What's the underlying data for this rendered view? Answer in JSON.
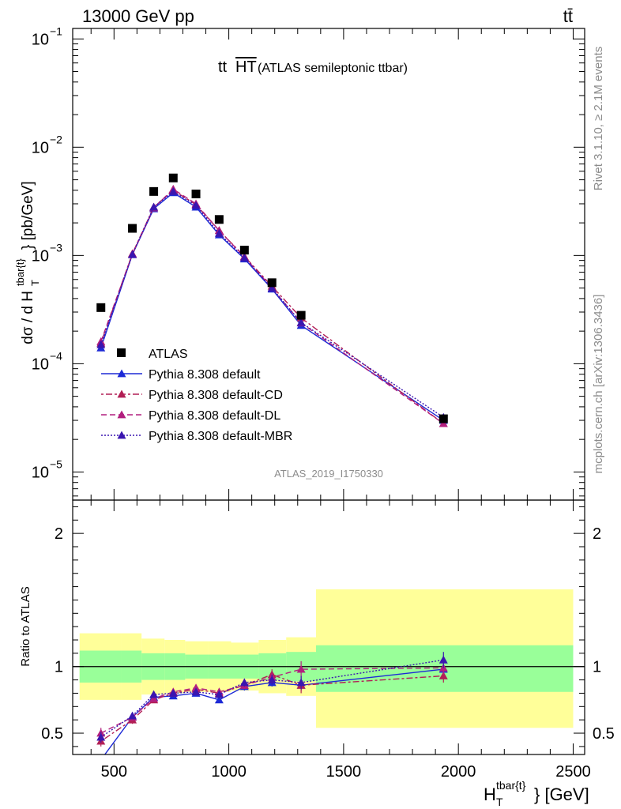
{
  "header": {
    "process": "13000 GeV pp",
    "channel": "tt̄"
  },
  "side_labels": {
    "rivet": "Rivet 3.1.10, ≥ 2.1M events",
    "mcplots": "mcplots.cern.ch [arXiv:1306.3436]"
  },
  "chart_data": [
    {
      "type": "scatter",
      "panel": "main",
      "title_main": "tt",
      "title_over": "HT",
      "title_sub": "(ATLAS semileptonic ttbar)",
      "watermark": "ATLAS_2019_I1750330",
      "ylabel": "dσ / d H_T^{tbar{t}} [pb/GeV]",
      "yscale": "log",
      "ylim": [
        5.5e-06,
        0.125
      ],
      "xlim": [
        320,
        2550
      ],
      "y_ticks": [
        {
          "value": 1e-05,
          "base": "10",
          "exp": "−5"
        },
        {
          "value": 0.0001,
          "base": "10",
          "exp": "−4"
        },
        {
          "value": 0.001,
          "base": "10",
          "exp": "−3"
        },
        {
          "value": 0.01,
          "base": "10",
          "exp": "−2"
        },
        {
          "value": 0.1,
          "base": "10",
          "exp": "−1"
        }
      ],
      "legend_position": "bottom-left",
      "series": [
        {
          "name": "ATLAS",
          "marker": "square",
          "color": "#000000",
          "x": [
            443,
            580,
            673,
            758,
            857,
            958,
            1068,
            1188,
            1315,
            1935
          ],
          "y": [
            0.00033,
            0.00178,
            0.0039,
            0.0052,
            0.0037,
            0.00215,
            0.00112,
            0.00056,
            0.00028,
            3.1e-05
          ]
        },
        {
          "name": "Pythia 8.308 default",
          "marker": "triangle",
          "color": "#1d2ad6",
          "dash": "",
          "x": [
            443,
            580,
            673,
            758,
            857,
            958,
            1068,
            1188,
            1315,
            1935
          ],
          "y": [
            0.00014,
            0.00102,
            0.0027,
            0.0038,
            0.0028,
            0.00155,
            0.00093,
            0.00049,
            0.000226,
            3e-05
          ]
        },
        {
          "name": "Pythia 8.308 default-CD",
          "marker": "triangle",
          "color": "#b21f55",
          "dash": "3,3,8,3",
          "x": [
            443,
            580,
            673,
            758,
            857,
            958,
            1068,
            1188,
            1315,
            1935
          ],
          "y": [
            0.000155,
            0.00104,
            0.0028,
            0.004,
            0.00295,
            0.0017,
            0.00098,
            0.00052,
            0.000265,
            2.8e-05
          ]
        },
        {
          "name": "Pythia 8.308 default-DL",
          "marker": "triangle",
          "color": "#b21f7e",
          "dash": "7,4",
          "x": [
            443,
            580,
            673,
            758,
            857,
            958,
            1068,
            1188,
            1315,
            1935
          ],
          "y": [
            0.00016,
            0.00103,
            0.00275,
            0.0041,
            0.003,
            0.0017,
            0.00097,
            0.0005,
            0.000238,
            2.8e-05
          ]
        },
        {
          "name": "Pythia 8.308 default-MBR",
          "marker": "triangle",
          "color": "#3a16b0",
          "dash": "2,2",
          "x": [
            443,
            580,
            673,
            758,
            857,
            958,
            1068,
            1188,
            1315,
            1935
          ],
          "y": [
            0.00015,
            0.00102,
            0.0028,
            0.0039,
            0.0029,
            0.0016,
            0.00095,
            0.0005,
            0.00024,
            3.2e-05
          ]
        }
      ]
    },
    {
      "type": "line",
      "panel": "ratio",
      "ylabel": "Ratio to ATLAS",
      "xlabel": "H_T^{tbar{t}} [GeV]",
      "ylim": [
        0.34,
        2.25
      ],
      "xlim": [
        320,
        2550
      ],
      "x_ticks": [
        500,
        1000,
        1500,
        2000,
        2500
      ],
      "y_ticks": [
        0.5,
        1,
        2
      ],
      "y_tick_labels": [
        "0.5",
        "1",
        "2"
      ],
      "x_tick_labels": [
        "500",
        "1000",
        "1500",
        "2000",
        "2500"
      ],
      "reference_line": 1,
      "bands": {
        "edges": [
          350,
          530,
          620,
          720,
          810,
          910,
          1010,
          1130,
          1250,
          1380,
          2500
        ],
        "yellow_lo": [
          0.75,
          0.75,
          0.79,
          0.8,
          0.81,
          0.81,
          0.82,
          0.8,
          0.78,
          0.54
        ],
        "yellow_hi": [
          1.25,
          1.25,
          1.21,
          1.2,
          1.19,
          1.19,
          1.18,
          1.2,
          1.22,
          1.58
        ],
        "green_lo": [
          0.88,
          0.88,
          0.9,
          0.9,
          0.91,
          0.91,
          0.91,
          0.9,
          0.89,
          0.81
        ],
        "green_hi": [
          1.12,
          1.12,
          1.1,
          1.1,
          1.09,
          1.09,
          1.09,
          1.1,
          1.11,
          1.16
        ]
      },
      "series": [
        {
          "name": "Pythia 8.308 default",
          "color": "#1d2ad6",
          "dash": "",
          "x": [
            443,
            580,
            673,
            758,
            857,
            958,
            1068,
            1188,
            1315,
            1935
          ],
          "y": [
            0.3,
            0.62,
            0.77,
            0.78,
            0.8,
            0.75,
            0.85,
            0.88,
            0.86,
            0.98
          ],
          "err": [
            0.03,
            0.02,
            0.02,
            0.02,
            0.02,
            0.02,
            0.03,
            0.03,
            0.04,
            0.03
          ]
        },
        {
          "name": "Pythia 8.308 default-CD",
          "color": "#b21f55",
          "dash": "3,3,8,3",
          "x": [
            443,
            580,
            673,
            758,
            857,
            958,
            1068,
            1188,
            1315,
            1935
          ],
          "y": [
            0.44,
            0.6,
            0.75,
            0.8,
            0.83,
            0.8,
            0.86,
            0.94,
            0.86,
            0.93
          ],
          "err": [
            0.04,
            0.03,
            0.02,
            0.02,
            0.02,
            0.02,
            0.03,
            0.04,
            0.06,
            0.05
          ]
        },
        {
          "name": "Pythia 8.308 default-DL",
          "color": "#b21f7e",
          "dash": "7,4",
          "x": [
            443,
            580,
            673,
            758,
            857,
            958,
            1068,
            1188,
            1315,
            1935
          ],
          "y": [
            0.5,
            0.62,
            0.76,
            0.81,
            0.84,
            0.81,
            0.86,
            0.92,
            0.98,
            0.99
          ],
          "err": [
            0.04,
            0.02,
            0.02,
            0.02,
            0.02,
            0.02,
            0.03,
            0.04,
            0.06,
            0.05
          ]
        },
        {
          "name": "Pythia 8.308 default-MBR",
          "color": "#3a16b0",
          "dash": "2,2",
          "x": [
            443,
            580,
            673,
            758,
            857,
            958,
            1068,
            1188,
            1315,
            1935
          ],
          "y": [
            0.47,
            0.63,
            0.79,
            0.8,
            0.81,
            0.79,
            0.88,
            0.9,
            0.88,
            1.05
          ],
          "err": [
            0.04,
            0.02,
            0.02,
            0.02,
            0.02,
            0.02,
            0.03,
            0.04,
            0.05,
            0.06
          ]
        }
      ]
    }
  ]
}
